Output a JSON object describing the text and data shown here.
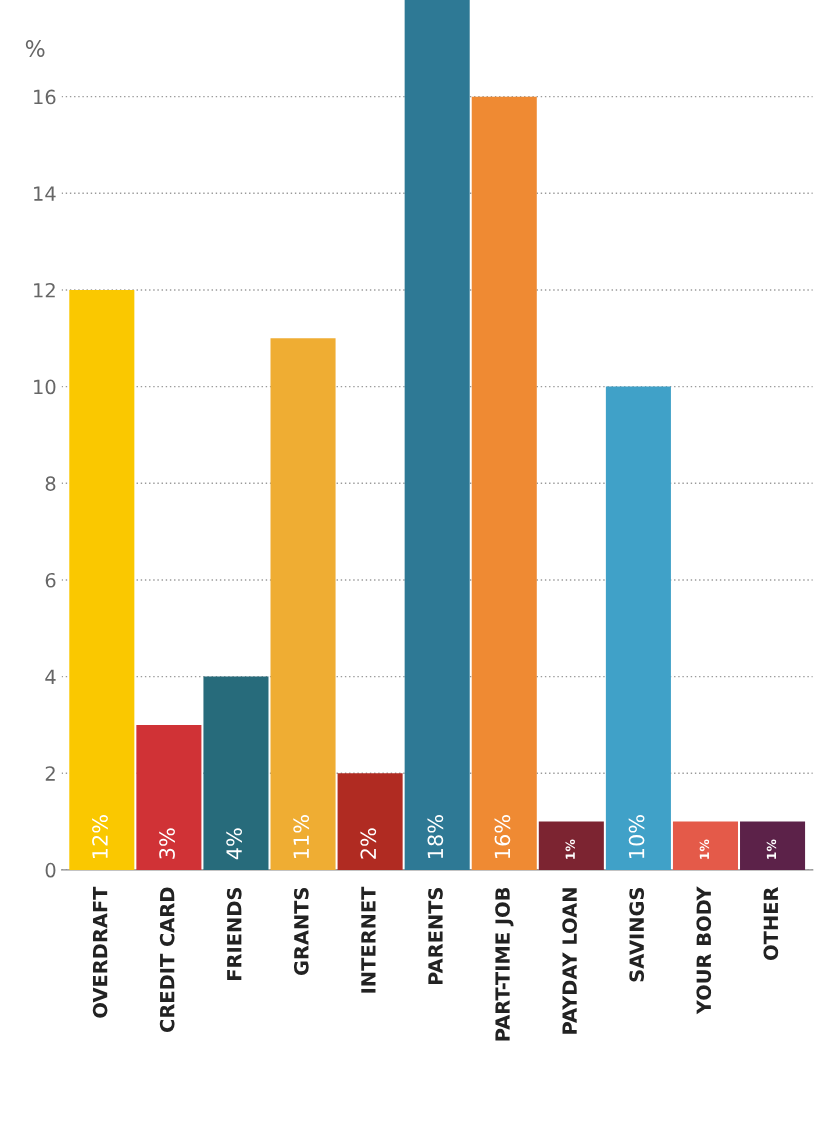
{
  "chart_data": {
    "type": "bar",
    "ylabel": "%",
    "categories": [
      "OVERDRAFT",
      "CREDIT CARD",
      "FRIENDS",
      "GRANTS",
      "INTERNET",
      "PARENTS",
      "PART-TIME JOB",
      "PAYDAY LOAN",
      "SAVINGS",
      "YOUR BODY",
      "OTHER"
    ],
    "values": [
      12,
      3,
      4,
      11,
      2,
      18,
      16,
      1,
      10,
      1,
      1
    ],
    "colors": [
      "#fac800",
      "#d03236",
      "#276b7b",
      "#efad33",
      "#b02b22",
      "#2e7995",
      "#ef8a33",
      "#7c2431",
      "#40a1c8",
      "#e45a49",
      "#5c2249"
    ],
    "value_labels": [
      "12%",
      "3%",
      "4%",
      "11%",
      "2%",
      "18%",
      "16%",
      "1%",
      "10%",
      "1%",
      "1%"
    ],
    "ylim": [
      0,
      18
    ],
    "yticks": [
      0,
      2,
      4,
      6,
      8,
      10,
      12,
      14,
      16
    ],
    "grid": "y"
  }
}
